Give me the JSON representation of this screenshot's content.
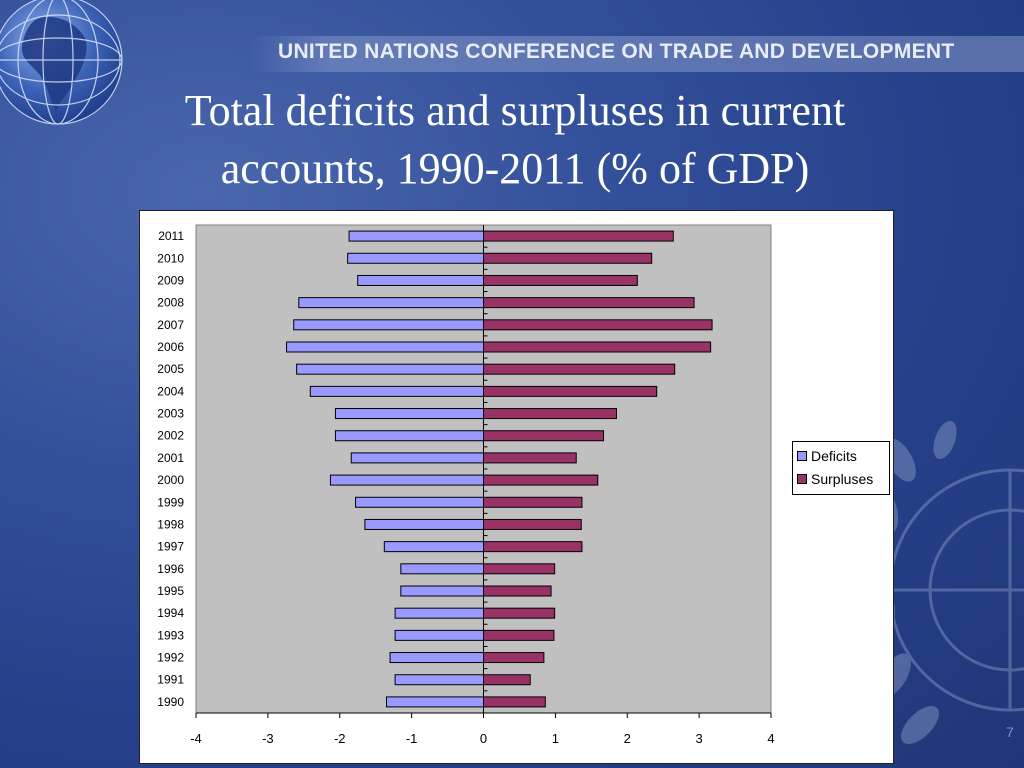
{
  "header": {
    "organization": "UNITED NATIONS CONFERENCE ON TRADE AND DEVELOPMENT"
  },
  "slide": {
    "title_line1": "Total deficits and surpluses in current",
    "title_line2": "accounts, 1990-2011 (% of GDP)",
    "page_number": "7"
  },
  "colors": {
    "deficits": "#9999ff",
    "surpluses": "#993366",
    "plot_background": "#c0c0c0"
  },
  "chart_data": {
    "type": "bar",
    "orientation": "horizontal",
    "title": "",
    "xlabel": "",
    "ylabel": "",
    "categories": [
      "1990",
      "1991",
      "1992",
      "1993",
      "1994",
      "1995",
      "1996",
      "1997",
      "1998",
      "1999",
      "2000",
      "2001",
      "2002",
      "2003",
      "2004",
      "2005",
      "2006",
      "2007",
      "2008",
      "2009",
      "2010",
      "2011"
    ],
    "series": [
      {
        "name": "Deficits",
        "values": [
          -1.35,
          -1.23,
          -1.3,
          -1.23,
          -1.23,
          -1.15,
          -1.15,
          -1.38,
          -1.65,
          -1.78,
          -2.13,
          -1.84,
          -2.06,
          -2.06,
          -2.41,
          -2.6,
          -2.74,
          -2.64,
          -2.57,
          -1.75,
          -1.89,
          -1.87
        ]
      },
      {
        "name": "Surpluses",
        "values": [
          0.86,
          0.65,
          0.84,
          0.98,
          0.99,
          0.94,
          0.99,
          1.37,
          1.36,
          1.37,
          1.59,
          1.29,
          1.67,
          1.85,
          2.41,
          2.66,
          3.16,
          3.18,
          2.93,
          2.14,
          2.34,
          2.64
        ]
      }
    ],
    "xlim": [
      -4,
      4
    ],
    "xticks": [
      "-4",
      "-3",
      "-2",
      "-1",
      "0",
      "1",
      "2",
      "3",
      "4"
    ],
    "grid": false,
    "legend_position": "right"
  }
}
